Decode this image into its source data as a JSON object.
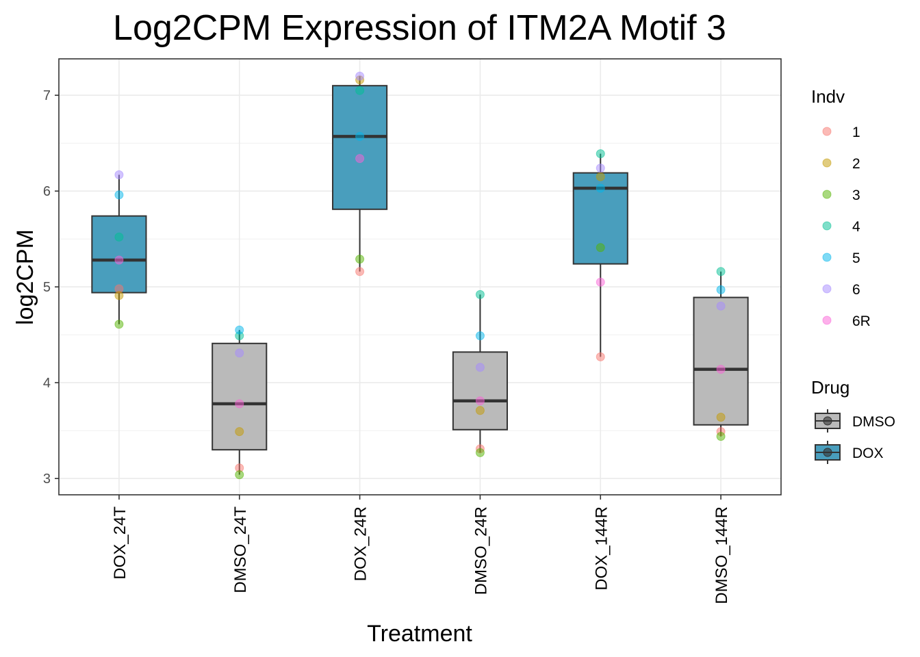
{
  "chart_data": {
    "type": "box",
    "title": "Log2CPM Expression of ITM2A Motif 3",
    "xlabel": "Treatment",
    "ylabel": "log2CPM",
    "ylim": [
      2.83,
      7.38
    ],
    "yticks": [
      3,
      4,
      5,
      6,
      7
    ],
    "grid": true,
    "categories": [
      "DOX_24T",
      "DMSO_24T",
      "DOX_24R",
      "DMSO_24R",
      "DOX_144R",
      "DMSO_144R"
    ],
    "fill_by_drug": [
      "DOX",
      "DMSO",
      "DOX",
      "DMSO",
      "DOX",
      "DMSO"
    ],
    "boxes": [
      {
        "category": "DOX_24T",
        "drug": "DOX",
        "q1": 4.94,
        "median": 5.28,
        "q3": 5.74,
        "whisker_low": 4.61,
        "whisker_high": 6.17
      },
      {
        "category": "DMSO_24T",
        "drug": "DMSO",
        "q1": 3.3,
        "median": 3.78,
        "q3": 4.41,
        "whisker_low": 3.04,
        "whisker_high": 4.55
      },
      {
        "category": "DOX_24R",
        "drug": "DOX",
        "q1": 5.81,
        "median": 6.57,
        "q3": 7.1,
        "whisker_low": 5.16,
        "whisker_high": 7.2
      },
      {
        "category": "DMSO_24R",
        "drug": "DMSO",
        "q1": 3.51,
        "median": 3.81,
        "q3": 4.32,
        "whisker_low": 3.27,
        "whisker_high": 4.92
      },
      {
        "category": "DOX_144R",
        "drug": "DOX",
        "q1": 5.24,
        "median": 6.03,
        "q3": 6.19,
        "whisker_low": 4.27,
        "whisker_high": 6.39
      },
      {
        "category": "DMSO_144R",
        "drug": "DMSO",
        "q1": 3.56,
        "median": 4.14,
        "q3": 4.89,
        "whisker_low": 3.44,
        "whisker_high": 5.16
      }
    ],
    "points": [
      {
        "category": "DOX_24T",
        "indv": "1",
        "value": 4.98
      },
      {
        "category": "DOX_24T",
        "indv": "2",
        "value": 4.91
      },
      {
        "category": "DOX_24T",
        "indv": "3",
        "value": 4.61
      },
      {
        "category": "DOX_24T",
        "indv": "4",
        "value": 5.52
      },
      {
        "category": "DOX_24T",
        "indv": "5",
        "value": 5.96
      },
      {
        "category": "DOX_24T",
        "indv": "6",
        "value": 6.17
      },
      {
        "category": "DOX_24T",
        "indv": "6R",
        "value": 5.28
      },
      {
        "category": "DMSO_24T",
        "indv": "1",
        "value": 3.11
      },
      {
        "category": "DMSO_24T",
        "indv": "2",
        "value": 3.49
      },
      {
        "category": "DMSO_24T",
        "indv": "3",
        "value": 3.04
      },
      {
        "category": "DMSO_24T",
        "indv": "4",
        "value": 4.49
      },
      {
        "category": "DMSO_24T",
        "indv": "5",
        "value": 4.55
      },
      {
        "category": "DMSO_24T",
        "indv": "6",
        "value": 4.31
      },
      {
        "category": "DMSO_24T",
        "indv": "6R",
        "value": 3.78
      },
      {
        "category": "DOX_24R",
        "indv": "1",
        "value": 5.16
      },
      {
        "category": "DOX_24R",
        "indv": "2",
        "value": 7.16
      },
      {
        "category": "DOX_24R",
        "indv": "3",
        "value": 5.29
      },
      {
        "category": "DOX_24R",
        "indv": "4",
        "value": 7.05
      },
      {
        "category": "DOX_24R",
        "indv": "5",
        "value": 6.57
      },
      {
        "category": "DOX_24R",
        "indv": "6",
        "value": 7.2
      },
      {
        "category": "DOX_24R",
        "indv": "6R",
        "value": 6.34
      },
      {
        "category": "DMSO_24R",
        "indv": "1",
        "value": 3.31
      },
      {
        "category": "DMSO_24R",
        "indv": "2",
        "value": 3.71
      },
      {
        "category": "DMSO_24R",
        "indv": "3",
        "value": 3.27
      },
      {
        "category": "DMSO_24R",
        "indv": "4",
        "value": 4.92
      },
      {
        "category": "DMSO_24R",
        "indv": "5",
        "value": 4.49
      },
      {
        "category": "DMSO_24R",
        "indv": "6",
        "value": 4.16
      },
      {
        "category": "DMSO_24R",
        "indv": "6R",
        "value": 3.81
      },
      {
        "category": "DOX_144R",
        "indv": "1",
        "value": 4.27
      },
      {
        "category": "DOX_144R",
        "indv": "2",
        "value": 6.15
      },
      {
        "category": "DOX_144R",
        "indv": "3",
        "value": 5.41
      },
      {
        "category": "DOX_144R",
        "indv": "4",
        "value": 6.39
      },
      {
        "category": "DOX_144R",
        "indv": "5",
        "value": 6.03
      },
      {
        "category": "DOX_144R",
        "indv": "6",
        "value": 6.24
      },
      {
        "category": "DOX_144R",
        "indv": "6R",
        "value": 5.05
      },
      {
        "category": "DMSO_144R",
        "indv": "1",
        "value": 3.49
      },
      {
        "category": "DMSO_144R",
        "indv": "2",
        "value": 3.64
      },
      {
        "category": "DMSO_144R",
        "indv": "3",
        "value": 3.44
      },
      {
        "category": "DMSO_144R",
        "indv": "4",
        "value": 5.16
      },
      {
        "category": "DMSO_144R",
        "indv": "5",
        "value": 4.97
      },
      {
        "category": "DMSO_144R",
        "indv": "6",
        "value": 4.8
      },
      {
        "category": "DMSO_144R",
        "indv": "6R",
        "value": 4.14
      }
    ],
    "legends": [
      {
        "title": "Indv",
        "entries": [
          {
            "label": "1",
            "color": "#F8766D"
          },
          {
            "label": "2",
            "color": "#C49A00"
          },
          {
            "label": "3",
            "color": "#53B400"
          },
          {
            "label": "4",
            "color": "#00C094"
          },
          {
            "label": "5",
            "color": "#00B6EB"
          },
          {
            "label": "6",
            "color": "#A58AFF"
          },
          {
            "label": "6R",
            "color": "#FB61D7"
          }
        ]
      },
      {
        "title": "Drug",
        "entries": [
          {
            "label": "DMSO",
            "color": "#BABABA"
          },
          {
            "label": "DOX",
            "color": "#499EBD"
          }
        ]
      }
    ],
    "legend_position": "right"
  }
}
